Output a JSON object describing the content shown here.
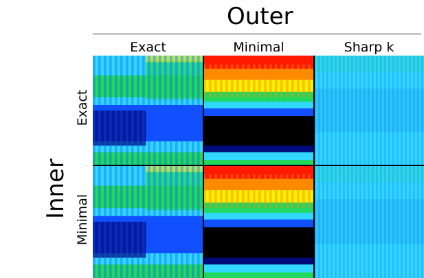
{
  "outer_title": "Outer",
  "inner_title": "Inner",
  "columns": [
    "Exact",
    "Minimal",
    "Sharp k"
  ],
  "rows": [
    "Exact",
    "Minimal"
  ],
  "colors": {
    "dark_blue": "#000a7a",
    "blue": "#1050ff",
    "cyan": "#30d8ff",
    "green": "#20d860",
    "yellow": "#f8f000",
    "orange": "#ff8a00",
    "red": "#ff1a00",
    "black": "#000000",
    "grid_line": "#000000"
  }
}
